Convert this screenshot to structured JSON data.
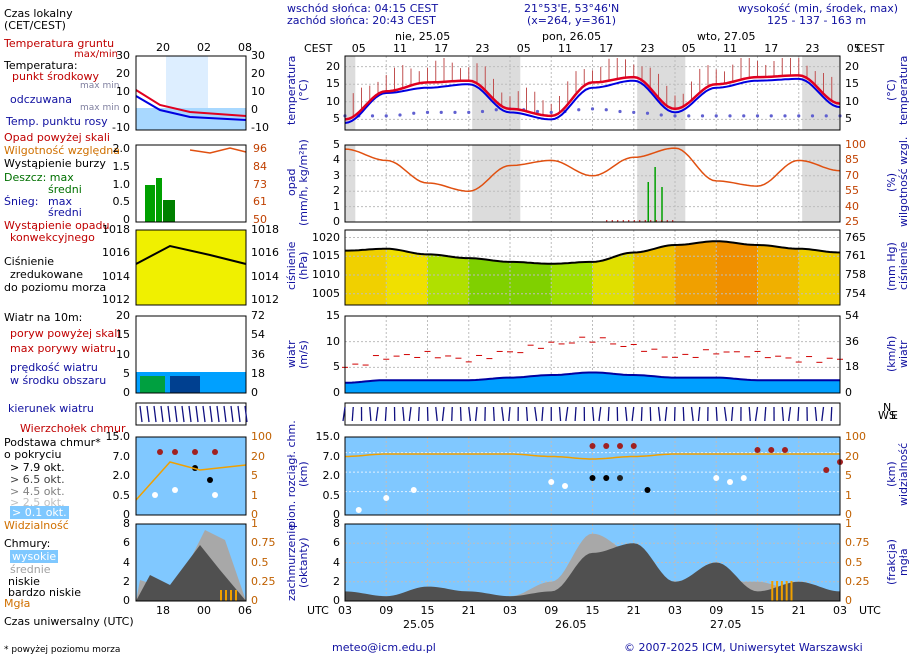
{
  "header": {
    "sunrise": "wschód słońca: 04:15 CEST",
    "sunset": "zachód słońca: 20:43 CEST",
    "coords": "21°53'E, 53°46'N",
    "grid": "(x=264,  y=361)",
    "alt_title": "wysokość (min, środek, max)",
    "alt_values": "125 - 137 - 163 m",
    "tz_left": "CEST",
    "tz_right": "CEST",
    "day_labels_top": [
      "nie, 25.05",
      "pon, 26.05",
      "wto, 27.05"
    ],
    "hours_top": [
      "05",
      "11",
      "17",
      "23",
      "05",
      "11",
      "17",
      "23",
      "05",
      "11",
      "17",
      "23",
      "05"
    ]
  },
  "footer": {
    "utc_left": "UTC",
    "utc_right": "UTC",
    "hours_bottom": [
      "03",
      "09",
      "15",
      "21",
      "03",
      "09",
      "15",
      "21",
      "03",
      "09",
      "15",
      "21",
      "03"
    ],
    "dates_bottom": [
      "25.05",
      "26.05",
      "27.05"
    ],
    "email": "meteo@icm.edu.pl",
    "copyright": "© 2007-2025 ICM, Uniwersytet Warszawski",
    "footnote": "* powyżej poziomu morza"
  },
  "legend": {
    "czas_lokalny": "Czas lokalny",
    "czas_lokalny2": "(CET/CEST)",
    "legend_hours_top": [
      "20",
      "02",
      "08"
    ],
    "temp_gruntu": "Temperatura gruntu",
    "maxmin": "max/min",
    "temperatura": "Temperatura:",
    "punkt_srodkowy": "punkt środkowy",
    "max_min_a": "max min",
    "odczuwana": "odczuwana",
    "max_min_b": "max min",
    "punkt_rosy": "Temp. punktu rosy",
    "temp_ticks": [
      "30",
      "20",
      "10",
      "0",
      "-10"
    ],
    "opad": "Opad powyżej skali",
    "wilgotnosc": "Wilgotność względna",
    "burza": "Wystąpienie burzy",
    "deszcz": "Deszcz: max",
    "srednio1": "średni",
    "snieg": "Śnieg:",
    "snieg_max": "max",
    "srednio2": "średni",
    "opad_konw": "Wystąpienie opadu",
    "opad_konw2": "konwekcyjnego",
    "opad_ticks_left": [
      "2.0",
      "1.5",
      "1.0",
      "0.5",
      "0"
    ],
    "wilg_ticks": [
      "96",
      "84",
      "73",
      "61",
      "50"
    ],
    "cisnienie": "Ciśnienie",
    "zredukowane": "zredukowane",
    "do_poziomu": "do poziomu morza",
    "press_ticks_left": [
      "1018",
      "1016",
      "1014",
      "1012"
    ],
    "press_ticks_right": [
      "1018",
      "1016",
      "1014",
      "1012"
    ],
    "wiatr": "Wiatr na 10m:",
    "poryw_skali": "poryw powyżej skali",
    "max_porywy": "max porywy wiatru",
    "predkosc": "prędkość wiatru",
    "w_srodku": "w środku obszaru",
    "wind_ticks_left": [
      "20",
      "15",
      "10",
      "5",
      "0"
    ],
    "wind_ticks_right": [
      "72",
      "54",
      "36",
      "18",
      "0"
    ],
    "kierunek": "kierunek wiatru",
    "wierzcholek": "Wierzchołek chmur",
    "podstawa": "Podstawa chmur*",
    "o_pokryciu": "o pokryciu",
    "okt": [
      "> 7.9 okt.",
      "> 6.5 okt.",
      "> 4.5 okt.",
      "> 2.5 okt.",
      "> 0.1 okt."
    ],
    "cloud_ticks_left": [
      "15.0",
      "7.0",
      "2.0",
      "0.5",
      "0"
    ],
    "cloud_ticks_right": [
      "100",
      "20",
      "5",
      "1",
      "0"
    ],
    "widzialnosc": "Widzialność",
    "chmury": "Chmury:",
    "wysokie": "wysokie",
    "srednie": "średnie",
    "niskie": "niskie",
    "bardzo_niskie": "bardzo niskie",
    "mgla": "Mgła",
    "cl_ticks_left": [
      "8",
      "6",
      "4",
      "2",
      "0"
    ],
    "cl_ticks_right": [
      "1",
      "0.75",
      "0.5",
      "0.25",
      "0"
    ],
    "legend_hours_bottom": [
      "18",
      "00",
      "06"
    ],
    "czas_uniwersalny": "Czas uniwersalny (UTC)"
  },
  "axes": {
    "temp_left": [
      "20",
      "15",
      "10",
      "5"
    ],
    "temp_right": [
      "20",
      "15",
      "10",
      "5"
    ],
    "temp_label_left": "temperatura",
    "temp_unit_left": "(°C)",
    "temp_label_right": "temperatura",
    "temp_unit_right": "(°C)",
    "opad_left": [
      "5",
      "4",
      "3",
      "2",
      "1",
      "0"
    ],
    "opad_right": [
      "100",
      "85",
      "70",
      "55",
      "40",
      "25"
    ],
    "opad_label_left": "opad",
    "opad_unit_left": "(mm/h, kg/m²h)",
    "opad_label_right": "wilgotność wzgl.",
    "opad_unit_right": "(%)",
    "press_left": [
      "1020",
      "1015",
      "1010",
      "1005"
    ],
    "press_right": [
      "765",
      "761",
      "758",
      "754"
    ],
    "press_label_left": "ciśnienie",
    "press_unit_left": "(hPa)",
    "press_label_right": "ciśnienie",
    "press_unit_right": "(mm Hg)",
    "wind_left": [
      "15",
      "10",
      "5",
      "0"
    ],
    "wind_right": [
      "54",
      "36",
      "18",
      "0"
    ],
    "wind_label_left": "wiatr",
    "wind_unit_left": "(m/s)",
    "wind_label_right": "wiatr",
    "wind_unit_right": "(km/h)",
    "cloud_left": [
      "15.0",
      "7.0",
      "2.0",
      "0.5",
      "0"
    ],
    "cloud_right": [
      "100",
      "20",
      "5",
      "1",
      "0"
    ],
    "cloud_label_left": "pion. rozciągł. chm.",
    "cloud_unit_left": "(km)",
    "cloud_label_right": "widzialność",
    "cloud_unit_right": "(km)",
    "cc_left": [
      "8",
      "6",
      "4",
      "2",
      "0"
    ],
    "cc_right": [
      "1",
      "0.75",
      "0.5",
      "0.25",
      "0"
    ],
    "cc_label_left": "zachmurzenie",
    "cc_unit_left": "(oktanty)",
    "cc_label_right": "(frakcja)",
    "cc_unit_right": "mgła",
    "compass": "N",
    "compass_ws": "WS",
    "compass_e": "E"
  },
  "colors": {
    "temp_line": "#e00020",
    "feel_line": "#0000e0",
    "dew": "#6060d0",
    "humidity": "#e05010",
    "pressure_line": "#000000",
    "wind_fill": "#00a0ff",
    "gust": "#d00000",
    "sky": "#80c8ff",
    "night_band": "#dcdcdc"
  },
  "chart_data": [
    {
      "type": "line",
      "title": "temperatura",
      "ylabel": "(°C)",
      "ylim": [
        2,
        23
      ],
      "x_hours": [
        0,
        6,
        12,
        18,
        24,
        30,
        36,
        42,
        48,
        54,
        60,
        66,
        72
      ],
      "series": [
        {
          "name": "punkt środkowy",
          "values": [
            5,
            13,
            15.5,
            16,
            8,
            6,
            15.5,
            17,
            8,
            15,
            17,
            17.5,
            9.5
          ]
        },
        {
          "name": "odczuwana",
          "values": [
            4,
            12.5,
            14,
            15,
            7,
            5,
            14,
            16,
            7,
            14,
            16,
            16.5,
            8.5
          ]
        },
        {
          "name": "Temp. punktu rosy",
          "values": [
            6,
            6,
            7,
            7,
            8,
            7,
            8,
            7,
            6,
            6,
            6,
            6,
            6
          ]
        }
      ]
    },
    {
      "type": "line",
      "title": "opad / wilgotność",
      "ylim": [
        25,
        100
      ],
      "series": [
        {
          "name": "Wilgotność względna",
          "values": [
            96,
            85,
            63,
            55,
            80,
            85,
            70,
            88,
            97,
            65,
            60,
            85,
            75
          ]
        }
      ]
    },
    {
      "type": "area",
      "title": "ciśnienie",
      "ylabel": "(hPa)",
      "ylim": [
        1002,
        1022
      ],
      "series": [
        {
          "name": "ciśnienie",
          "values": [
            1016.5,
            1017,
            1015.5,
            1014.5,
            1013.5,
            1013,
            1013.5,
            1016,
            1018,
            1019,
            1018,
            1017,
            1016
          ]
        }
      ]
    },
    {
      "type": "area",
      "title": "wiatr",
      "ylabel": "(m/s)",
      "ylim": [
        0,
        15
      ],
      "series": [
        {
          "name": "prędkość wiatru",
          "values": [
            2,
            2.5,
            2.5,
            2.5,
            3,
            3.5,
            4,
            3.5,
            3,
            3,
            2.5,
            2.5,
            2.5
          ]
        },
        {
          "name": "max porywy wiatru",
          "values": [
            5,
            7,
            7.5,
            6.5,
            8,
            9.5,
            10.5,
            9,
            7,
            8,
            7.5,
            6.5,
            6.5
          ]
        }
      ]
    },
    {
      "type": "line",
      "title": "widzialność",
      "ylabel": "(km)",
      "series": [
        {
          "name": "Widzialność",
          "values": [
            20,
            25,
            25,
            25,
            25,
            20,
            15,
            20,
            25,
            25,
            25,
            25,
            25
          ]
        }
      ]
    },
    {
      "type": "area",
      "title": "zachmurzenie",
      "ylabel": "(oktanty)",
      "ylim": [
        0,
        8
      ],
      "series": [
        {
          "name": "niskie",
          "values": [
            1,
            0.5,
            1.5,
            1,
            0.5,
            1,
            5,
            6,
            2,
            4,
            1,
            2,
            1
          ]
        },
        {
          "name": "średnie",
          "values": [
            0.5,
            0.5,
            0.5,
            0.5,
            0.5,
            2,
            7,
            5,
            1,
            2,
            2,
            1,
            0.5
          ]
        }
      ]
    }
  ]
}
